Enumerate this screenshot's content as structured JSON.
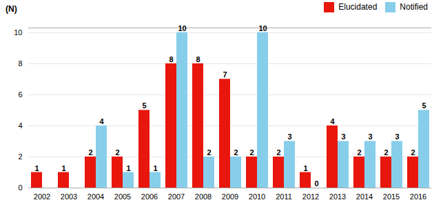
{
  "chart_data": {
    "type": "bar",
    "annotation": "(N)",
    "categories": [
      "2002",
      "2003",
      "2004",
      "2005",
      "2006",
      "2007",
      "2008",
      "2009",
      "2010",
      "2011",
      "2012",
      "2013",
      "2014",
      "2015",
      "2016"
    ],
    "series": [
      {
        "name": "Elucidated",
        "color": "#e8160c",
        "values": [
          1,
          1,
          2,
          2,
          5,
          8,
          8,
          7,
          2,
          2,
          1,
          4,
          2,
          2,
          2
        ]
      },
      {
        "name": "Notified",
        "color": "#87ceeb",
        "values": [
          0,
          0,
          4,
          1,
          1,
          10,
          2,
          2,
          10,
          3,
          0,
          3,
          3,
          3,
          5
        ],
        "value_labels": [
          null,
          null,
          "4",
          "1",
          "1",
          "10",
          "2",
          "2",
          "10",
          "3",
          "0",
          "3",
          "3",
          "3",
          "5"
        ]
      }
    ],
    "ylim": [
      0,
      10.3
    ],
    "yticks": [
      0,
      2,
      4,
      6,
      8,
      10
    ],
    "grid": true,
    "legend": "upper right",
    "data_labels": true
  }
}
